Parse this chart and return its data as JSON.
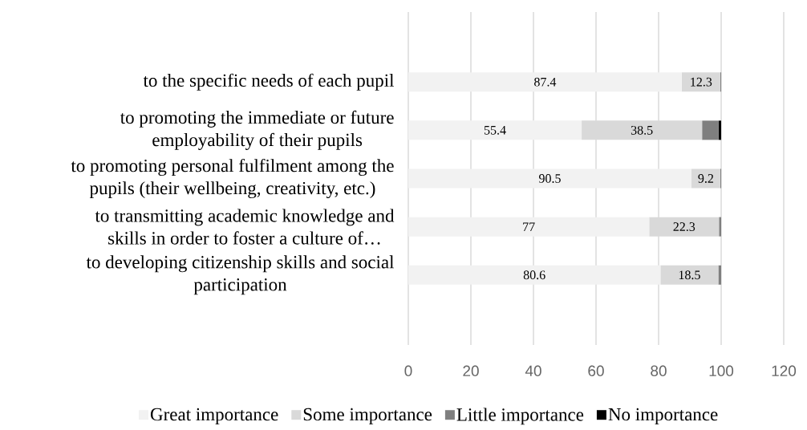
{
  "chart_data": {
    "type": "bar",
    "orientation": "horizontal",
    "stacked": true,
    "categories": [
      "to the specific needs of each pupil",
      "to promoting the immediate or future employability of their pupils",
      "to promoting personal fulfilment among the pupils (their wellbeing, creativity, etc.)",
      "to transmitting academic knowledge and skills in order to foster a culture of…",
      "to developing citizenship skills and social participation"
    ],
    "series": [
      {
        "name": "Great importance",
        "color": "#f2f2f2",
        "values": [
          87.4,
          55.4,
          90.5,
          77,
          80.6
        ],
        "value_labels": [
          "87.4",
          "55.4",
          "90.5",
          "77",
          "80.6"
        ]
      },
      {
        "name": "Some importance",
        "color": "#d9d9d9",
        "values": [
          12.3,
          38.5,
          9.2,
          22.3,
          18.5
        ],
        "value_labels": [
          "12.3",
          "38.5",
          "9.2",
          "22.3",
          "18.5"
        ]
      },
      {
        "name": "Little importance",
        "color": "#7f7f7f",
        "values": [
          0.3,
          5.3,
          0.3,
          0.7,
          0.9
        ]
      },
      {
        "name": "No importance",
        "color": "#000000",
        "values": [
          0,
          0.8,
          0,
          0,
          0
        ]
      }
    ],
    "xlim": [
      0,
      120
    ],
    "xticks": [
      0,
      20,
      40,
      60,
      80,
      100,
      120
    ],
    "grid": "x",
    "legend": "bottom"
  }
}
